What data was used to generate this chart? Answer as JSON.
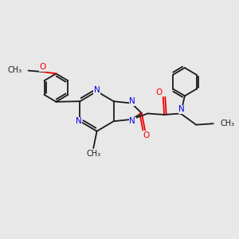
{
  "bg_color": "#e8e8e8",
  "bond_color": "#1a1a1a",
  "n_color": "#0000ee",
  "o_color": "#ee0000",
  "lw": 1.3,
  "fs": 7.5,
  "fig_w": 3.0,
  "fig_h": 3.0,
  "xlim": [
    0,
    10
  ],
  "ylim": [
    0,
    10
  ]
}
